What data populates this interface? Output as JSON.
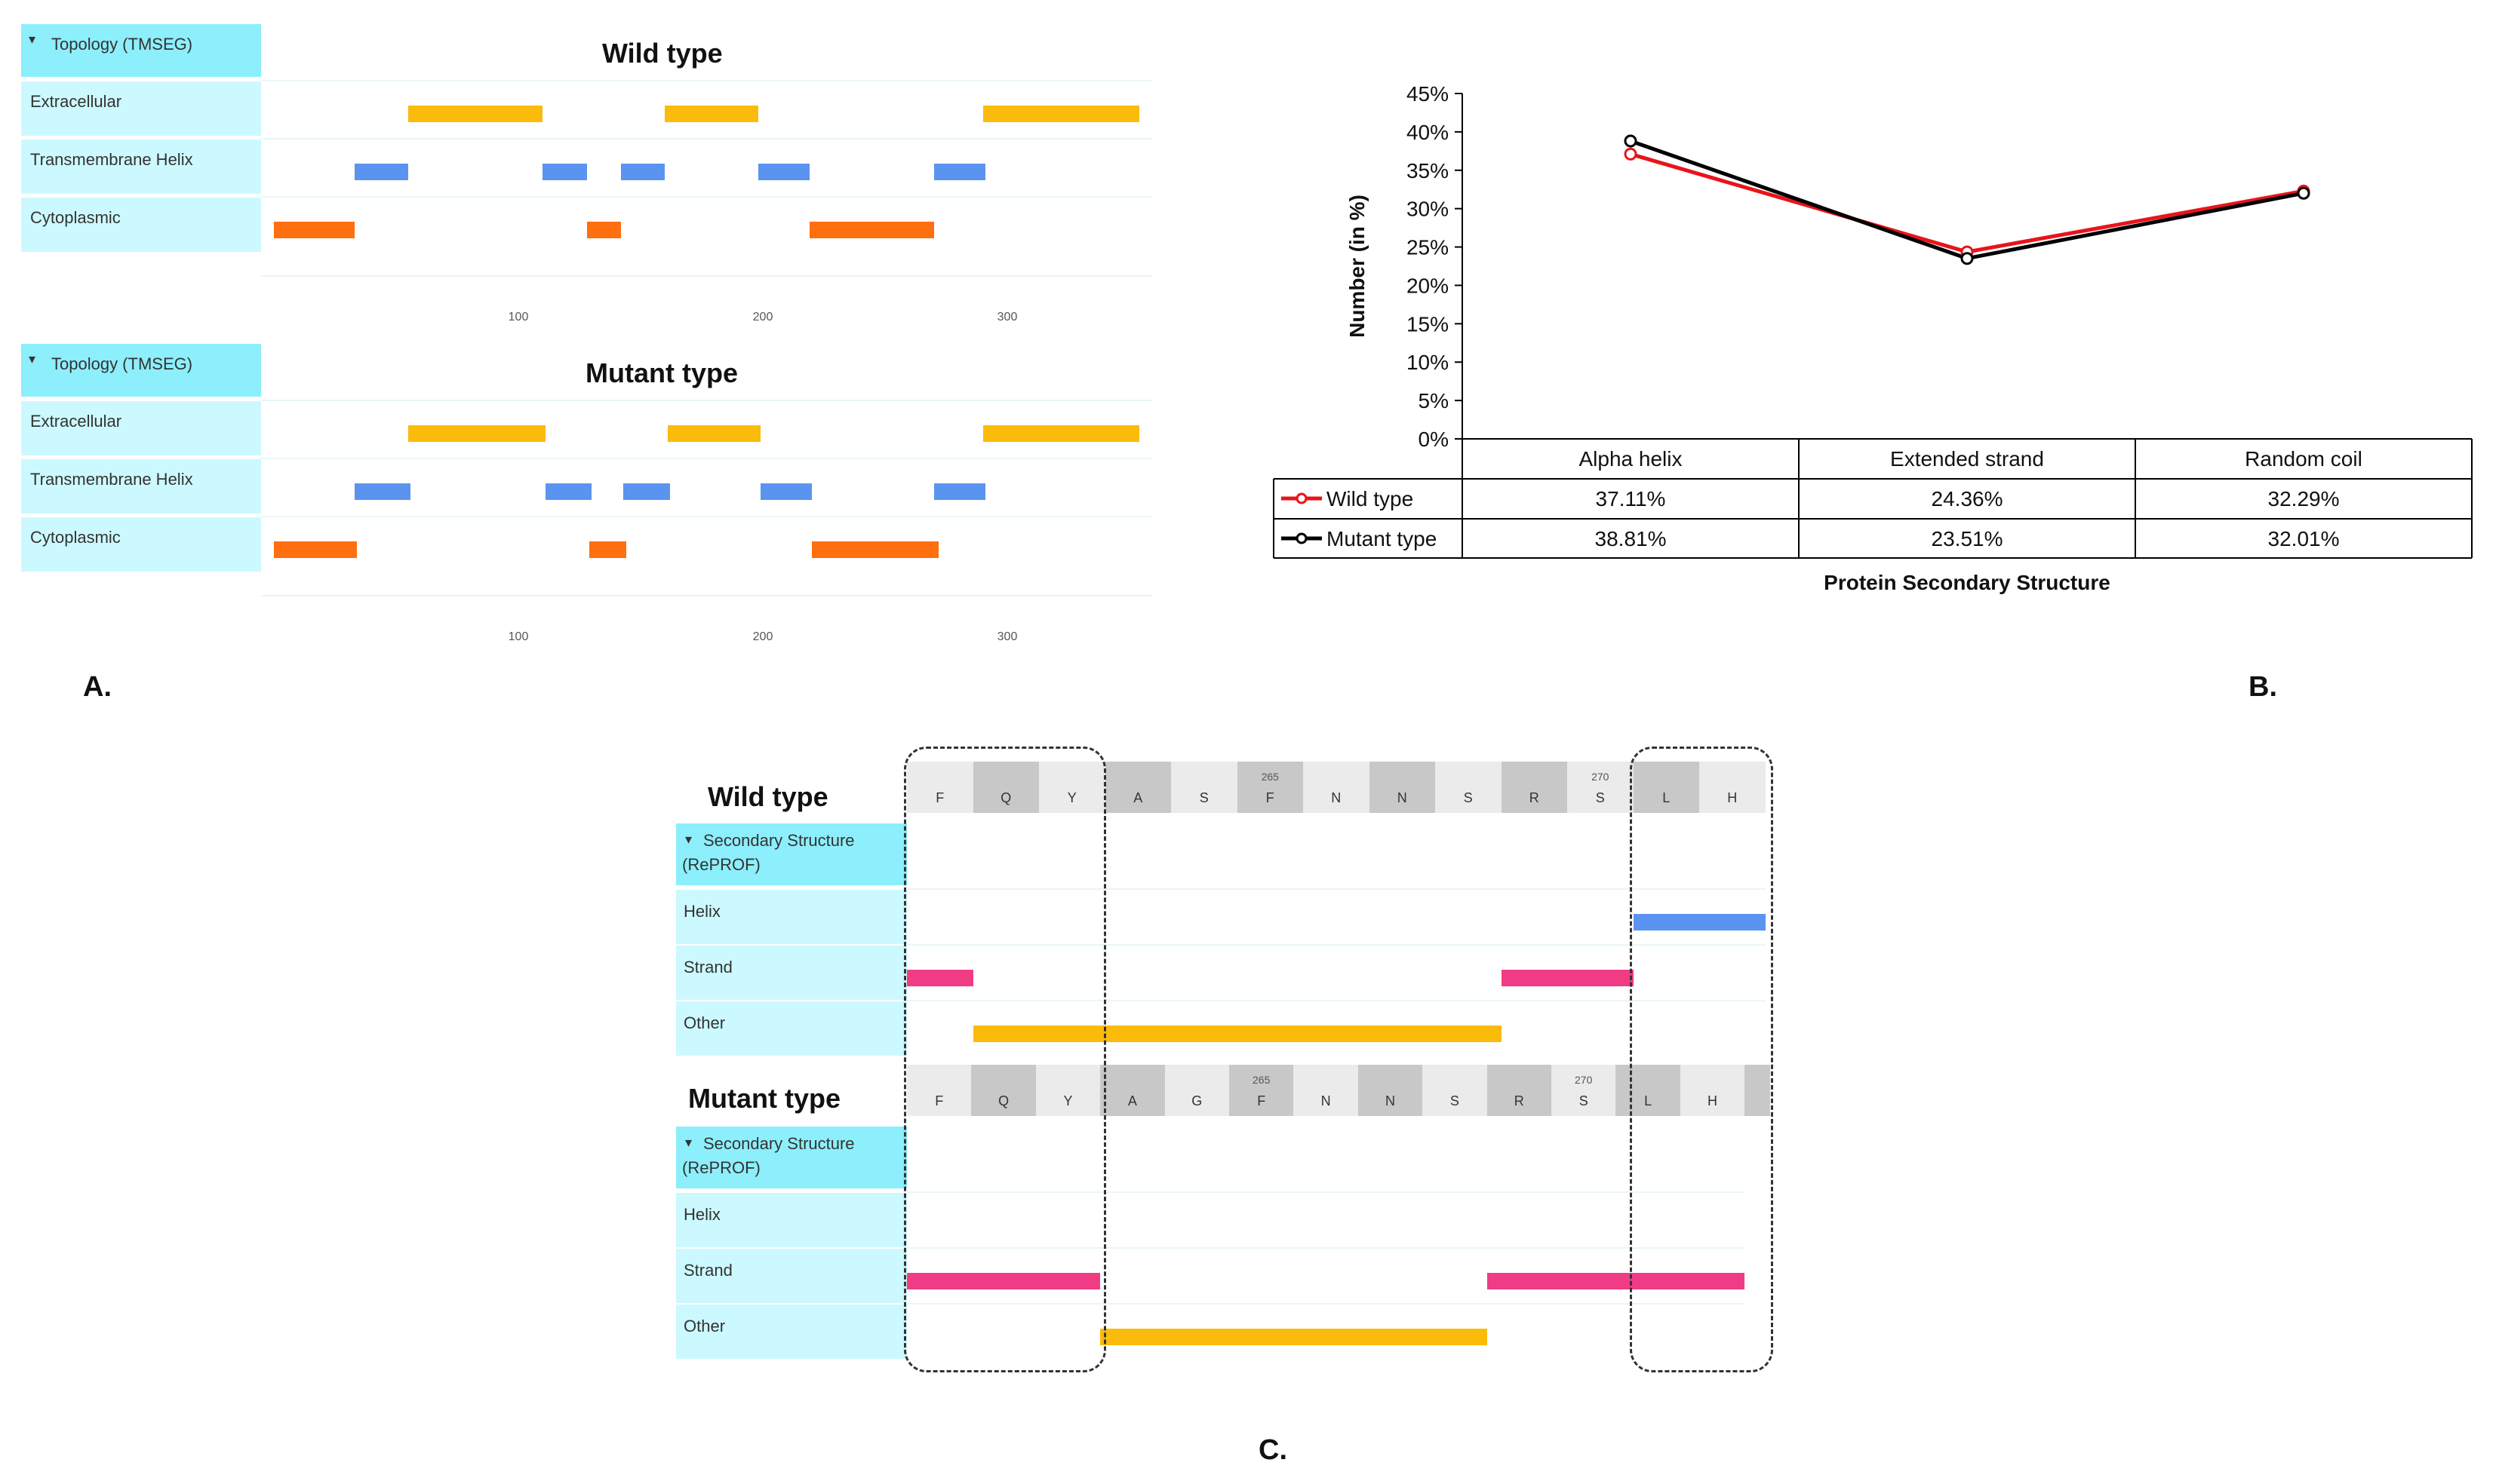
{
  "panel_a": {
    "label": "A.",
    "tracks": [
      {
        "header": "Topology (TMSEG)",
        "title": "Wild type",
        "rows": [
          "Extracellular",
          "Transmembrane Helix",
          "Cytoplasmic"
        ],
        "segments": {
          "Extracellular": [
            [
              55,
              110
            ],
            [
              160,
              198
            ],
            [
              290,
              354
            ]
          ],
          "Transmembrane Helix": [
            [
              33,
              55
            ],
            [
              110,
              128
            ],
            [
              142,
              160
            ],
            [
              198,
              219
            ],
            [
              270,
              291
            ]
          ],
          "Cytoplasmic": [
            [
              0,
              33
            ],
            [
              128,
              142
            ],
            [
              219,
              270
            ]
          ]
        },
        "ticks": [
          "100",
          "200",
          "300"
        ]
      },
      {
        "header": "Topology (TMSEG)",
        "title": "Mutant type",
        "rows": [
          "Extracellular",
          "Transmembrane Helix",
          "Cytoplasmic"
        ],
        "segments": {
          "Extracellular": [
            [
              55,
              111
            ],
            [
              161,
              199
            ],
            [
              290,
              354
            ]
          ],
          "Transmembrane Helix": [
            [
              33,
              56
            ],
            [
              111,
              130
            ],
            [
              143,
              162
            ],
            [
              199,
              220
            ],
            [
              270,
              291
            ]
          ],
          "Cytoplasmic": [
            [
              0,
              34
            ],
            [
              129,
              144
            ],
            [
              220,
              272
            ]
          ]
        },
        "ticks": [
          "100",
          "200",
          "300"
        ]
      }
    ]
  },
  "panel_b": {
    "label": "B."
  },
  "chart_data": {
    "type": "line",
    "title": "",
    "xlabel": "Protein Secondary Structure",
    "ylabel": "Number (in %)",
    "ylim": [
      0,
      45
    ],
    "yticks": [
      "0%",
      "5%",
      "10%",
      "15%",
      "20%",
      "25%",
      "30%",
      "35%",
      "40%",
      "45%"
    ],
    "categories": [
      "Alpha helix",
      "Extended strand",
      "Random coil"
    ],
    "series": [
      {
        "name": "Wild type",
        "values": [
          37.11,
          24.36,
          32.29
        ],
        "labels": [
          "37.11%",
          "24.36%",
          "32.29%"
        ],
        "color": "#e8141b"
      },
      {
        "name": "Mutant type",
        "values": [
          38.81,
          23.51,
          32.01
        ],
        "labels": [
          "38.81%",
          "23.51%",
          "32.01%"
        ],
        "color": "#000000"
      }
    ],
    "grid": false,
    "legend": "data table below chart"
  },
  "panel_c": {
    "label": "C.",
    "blocks": [
      {
        "title": "Wild type",
        "header": [
          "Secondary Structure",
          "(RePROF)"
        ],
        "rows": [
          "Helix",
          "Strand",
          "Other"
        ],
        "sequence": [
          "F",
          "Q",
          "Y",
          "A",
          "S",
          "F",
          "N",
          "N",
          "S",
          "R",
          "S",
          "L",
          "H"
        ],
        "shaded": [
          false,
          true,
          false,
          true,
          false,
          true,
          false,
          true,
          false,
          true,
          false,
          true,
          false
        ],
        "numbers": [
          {
            "idx": 5,
            "text": "265"
          },
          {
            "idx": 10,
            "text": "270"
          }
        ],
        "segments": {
          "Helix": [
            [
              11,
              13
            ]
          ],
          "Strand": [
            [
              0,
              1
            ],
            [
              9,
              11
            ]
          ],
          "Other": [
            [
              1,
              9
            ]
          ]
        }
      },
      {
        "title": "Mutant type",
        "header": [
          "Secondary Structure",
          "(RePROF)"
        ],
        "rows": [
          "Helix",
          "Strand",
          "Other"
        ],
        "sequence": [
          "F",
          "Q",
          "Y",
          "A",
          "G",
          "F",
          "N",
          "N",
          "S",
          "R",
          "S",
          "L",
          "H"
        ],
        "shaded": [
          false,
          true,
          false,
          true,
          false,
          true,
          false,
          true,
          false,
          true,
          false,
          true,
          false
        ],
        "numbers": [
          {
            "idx": 5,
            "text": "265"
          },
          {
            "idx": 10,
            "text": "270"
          }
        ],
        "segments": {
          "Helix": [],
          "Strand": [
            [
              0,
              3
            ],
            [
              9,
              13
            ]
          ],
          "Other": [
            [
              3,
              9
            ]
          ]
        }
      }
    ]
  },
  "colors": {
    "extracellular": "#fbbb0a",
    "transmembrane": "#5b94f0",
    "cytoplasmic": "#ff6e0f",
    "helix": "#5b94f0",
    "strand": "#f03c85",
    "other": "#fbbb0a",
    "header_bg": "#8ceffb",
    "label_bg": "#ccf9ff"
  }
}
